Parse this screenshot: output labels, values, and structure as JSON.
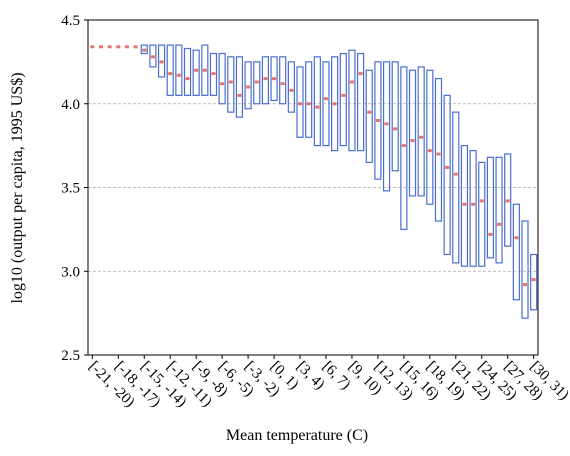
{
  "chart_data": {
    "type": "box",
    "x_label": "Mean temperature (C)",
    "y_label": "log10  (output per capita, 1995 US$)",
    "categories": [
      "[-21, -20)",
      null,
      null,
      "[-18, -17)",
      null,
      null,
      "[-15, -14)",
      null,
      null,
      "[-12, -11)",
      null,
      null,
      "[-9, -8)",
      null,
      null,
      "[-6, -5)",
      null,
      null,
      "[-3, -2)",
      null,
      null,
      "[0, 1)",
      null,
      null,
      "[3, 4)",
      null,
      null,
      "[6, 7)",
      null,
      null,
      "[9, 10)",
      null,
      null,
      "[12, 13)",
      null,
      null,
      "[15, 16)",
      null,
      null,
      "[18, 19)",
      null,
      null,
      "[21, 22)",
      null,
      null,
      "[24, 25)",
      null,
      null,
      "[27, 28)",
      null,
      null,
      "[30, 31)"
    ],
    "low": [
      4.34,
      4.34,
      4.34,
      4.34,
      4.34,
      4.34,
      4.3,
      4.22,
      4.16,
      4.05,
      4.05,
      4.05,
      4.05,
      4.05,
      4.05,
      4.0,
      3.95,
      3.92,
      3.97,
      4.0,
      4.0,
      4.02,
      4.0,
      3.95,
      3.8,
      3.8,
      3.75,
      3.75,
      3.72,
      3.75,
      3.72,
      3.72,
      3.65,
      3.55,
      3.48,
      3.6,
      3.25,
      3.45,
      3.45,
      3.4,
      3.3,
      3.1,
      3.05,
      3.03,
      3.03,
      3.03,
      3.08,
      3.05,
      3.15,
      2.83,
      2.72,
      2.77
    ],
    "median": [
      4.34,
      4.34,
      4.34,
      4.34,
      4.34,
      4.34,
      4.32,
      4.28,
      4.25,
      4.18,
      4.17,
      4.15,
      4.2,
      4.2,
      4.18,
      4.12,
      4.13,
      4.05,
      4.1,
      4.13,
      4.15,
      4.15,
      4.12,
      4.08,
      4.0,
      4.0,
      3.98,
      4.03,
      4.0,
      4.05,
      4.13,
      4.18,
      3.95,
      3.9,
      3.88,
      3.85,
      3.75,
      3.78,
      3.8,
      3.72,
      3.7,
      3.62,
      3.58,
      3.4,
      3.4,
      3.42,
      3.22,
      3.28,
      3.42,
      3.2,
      2.92,
      2.95
    ],
    "high": [
      4.34,
      4.34,
      4.34,
      4.34,
      4.34,
      4.34,
      4.35,
      4.35,
      4.35,
      4.35,
      4.35,
      4.33,
      4.32,
      4.35,
      4.3,
      4.3,
      4.28,
      4.28,
      4.25,
      4.25,
      4.28,
      4.28,
      4.28,
      4.25,
      4.22,
      4.25,
      4.28,
      4.25,
      4.28,
      4.3,
      4.32,
      4.3,
      4.2,
      4.25,
      4.25,
      4.25,
      4.22,
      4.2,
      4.22,
      4.2,
      4.15,
      4.05,
      3.95,
      3.75,
      3.72,
      3.65,
      3.68,
      3.68,
      3.7,
      3.4,
      3.3,
      3.1
    ],
    "box_color": "#4a6fd0",
    "median_color": "#e0504a",
    "ylim": [
      2.5,
      4.5
    ],
    "yticks": [
      2.5,
      {
        "value": 3,
        "label": "3.0"
      },
      3.5,
      {
        "value": 4,
        "label": "4.0"
      },
      4.5
    ],
    "grid": true
  }
}
